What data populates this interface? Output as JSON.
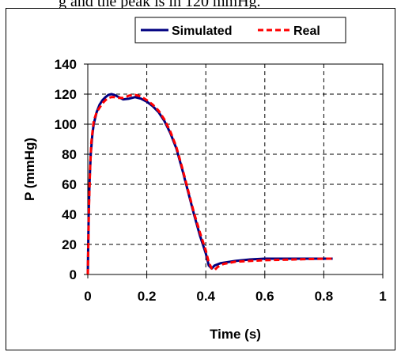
{
  "caption_fragment": "g and the peak is in 120 mmHg.",
  "chart_data": {
    "type": "line",
    "title": "",
    "xlabel": "Time (s)",
    "ylabel": "P (mmHg)",
    "xlim": [
      0,
      1
    ],
    "ylim": [
      0,
      140
    ],
    "xticks": [
      0,
      0.2,
      0.4,
      0.6,
      0.8,
      1
    ],
    "yticks": [
      0,
      20,
      40,
      60,
      80,
      100,
      120,
      140
    ],
    "xtick_labels": [
      "0",
      "0.2",
      "0.4",
      "0.6",
      "0.8",
      "1"
    ],
    "ytick_labels": [
      "0",
      "20",
      "40",
      "60",
      "80",
      "100",
      "120",
      "140"
    ],
    "grid": "dashed",
    "legend_position": "top-center",
    "series": [
      {
        "name": "Simulated",
        "color": "#000080",
        "style": "solid",
        "x": [
          0,
          0.003,
          0.006,
          0.01,
          0.015,
          0.02,
          0.03,
          0.04,
          0.05,
          0.06,
          0.07,
          0.08,
          0.09,
          0.1,
          0.12,
          0.14,
          0.16,
          0.18,
          0.2,
          0.22,
          0.24,
          0.26,
          0.28,
          0.3,
          0.32,
          0.34,
          0.36,
          0.38,
          0.4,
          0.41,
          0.42,
          0.43,
          0.45,
          0.5,
          0.55,
          0.6,
          0.7,
          0.8,
          0.83
        ],
        "y": [
          0,
          40,
          62,
          80,
          92,
          100,
          108,
          113,
          116,
          118,
          119.5,
          120,
          119.5,
          118.5,
          116.5,
          117,
          118,
          117,
          115,
          112,
          108,
          102,
          94,
          84,
          70,
          55,
          40,
          26,
          14,
          6,
          4,
          6,
          7.5,
          9,
          10,
          10.5,
          10.5,
          10.5,
          10.5
        ]
      },
      {
        "name": "Real",
        "color": "#ff0000",
        "style": "dashed",
        "x": [
          0,
          0.004,
          0.008,
          0.012,
          0.02,
          0.03,
          0.04,
          0.05,
          0.06,
          0.07,
          0.08,
          0.09,
          0.1,
          0.12,
          0.14,
          0.16,
          0.18,
          0.2,
          0.22,
          0.24,
          0.26,
          0.28,
          0.3,
          0.32,
          0.34,
          0.36,
          0.38,
          0.4,
          0.41,
          0.42,
          0.43,
          0.44,
          0.46,
          0.5,
          0.55,
          0.6,
          0.7,
          0.8,
          0.83
        ],
        "y": [
          0,
          45,
          72,
          88,
          102,
          108,
          111,
          114,
          116,
          117.5,
          118,
          118,
          117.5,
          117.5,
          119,
          119.5,
          118.5,
          116,
          113,
          109,
          103,
          95,
          85,
          71,
          56,
          41,
          28,
          16,
          8,
          4,
          3,
          5,
          7,
          8.5,
          9,
          9.5,
          10,
          10.5,
          10.5
        ]
      }
    ]
  }
}
